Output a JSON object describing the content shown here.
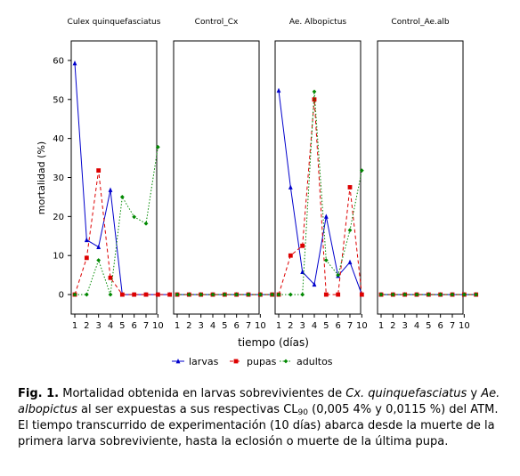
{
  "chart_data": {
    "type": "line",
    "panels": [
      {
        "title": "Culex quinquefasciatus",
        "series": {
          "larvas": [
            59.3,
            14,
            12.2,
            26.8,
            0,
            0,
            0,
            0,
            0
          ],
          "pupas": [
            0,
            9.4,
            31.8,
            4.3,
            0,
            0,
            0,
            0,
            0
          ],
          "adultos": [
            0,
            0,
            8.8,
            0,
            25,
            19.9,
            18.2,
            37.8,
            null
          ]
        }
      },
      {
        "title": "Control_Cx",
        "series": {
          "larvas": [
            0,
            0,
            0,
            0,
            0,
            0,
            0,
            0,
            0
          ],
          "pupas": [
            0,
            0,
            0,
            0,
            0,
            0,
            0,
            0,
            0
          ],
          "adultos": [
            0,
            0,
            0,
            0,
            0,
            0,
            0,
            0,
            0
          ]
        }
      },
      {
        "title": "Ae. Albopictus",
        "series": {
          "larvas": [
            52.3,
            27.5,
            5.8,
            2.6,
            20,
            4.8,
            8.3,
            0,
            null
          ],
          "pupas": [
            0,
            10,
            12.5,
            50,
            0,
            0,
            27.5,
            0,
            null
          ],
          "adultos": [
            0,
            0,
            0,
            52,
            8.8,
            5,
            16.5,
            31.8,
            null
          ]
        }
      },
      {
        "title": "Control_Ae.alb",
        "series": {
          "larvas": [
            0,
            0,
            0,
            0,
            0,
            0,
            0,
            0,
            0
          ],
          "pupas": [
            0,
            0,
            0,
            0,
            0,
            0,
            0,
            0,
            0
          ],
          "adultos": [
            0,
            0,
            0,
            0,
            0,
            0,
            0,
            0,
            0
          ]
        }
      }
    ],
    "x_ticks": [
      "1",
      "2",
      "3",
      "4",
      "5",
      "6",
      "7",
      "10"
    ],
    "y_ticks": [
      0,
      10,
      20,
      30,
      40,
      50,
      60
    ],
    "ylim": [
      -5,
      65
    ],
    "xlabel": "tiempo (días)",
    "ylabel": "mortalidad (%)",
    "legend_position": "bottom",
    "legend": [
      {
        "key": "larvas",
        "label": "larvas",
        "color": "#0000cc",
        "marker": "triangle",
        "dash": "solid"
      },
      {
        "key": "pupas",
        "label": "pupas",
        "color": "#dd0000",
        "marker": "square",
        "dash": "dashed"
      },
      {
        "key": "adultos",
        "label": "adultos",
        "color": "#008800",
        "marker": "diamond",
        "dash": "dotted"
      }
    ],
    "grid": false
  },
  "caption": {
    "label": "Fig. 1.",
    "t1": " Mortalidad obtenida en larvas sobrevivientes de ",
    "sp1": "Cx. quinquefasciatus",
    "t2": " y ",
    "sp2": "Ae. albopictus",
    "t3": " al ser expuestas a sus respectivas CL",
    "sub": "90",
    "t4": " (0,005 4% y 0,0115 %) del ATM. El tiempo transcurrido de experimentación (10 días) abarca desde la muerte de la primera larva sobreviviente, hasta la eclosión o muerte de la última pupa."
  }
}
